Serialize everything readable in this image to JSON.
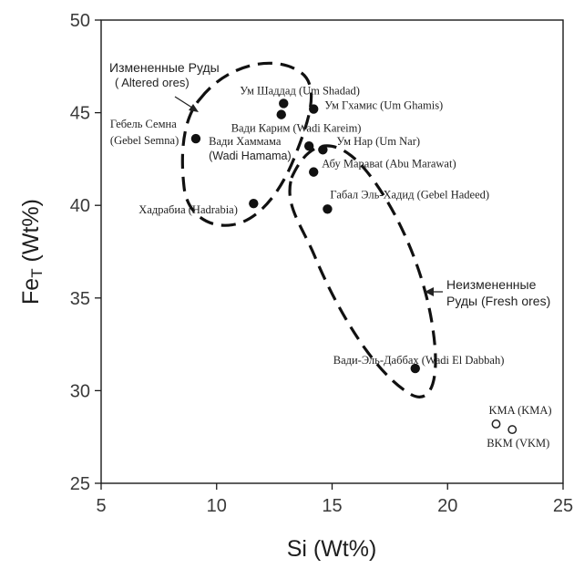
{
  "chart_data": {
    "type": "scatter",
    "xlabel": "Si (Wt%)",
    "ylabel": "FeT (Wt%)",
    "xlim": [
      5,
      25
    ],
    "ylim": [
      25,
      50
    ],
    "xticks": [
      5,
      10,
      15,
      20,
      25
    ],
    "yticks": [
      25,
      30,
      35,
      40,
      45,
      50
    ],
    "x_tick_labels": [
      "5",
      "10",
      "15",
      "20",
      "25"
    ],
    "y_tick_labels": [
      "25",
      "30",
      "35",
      "40",
      "45",
      "50"
    ],
    "grid": false,
    "ylabel_main": "Fe",
    "ylabel_sub": "T",
    "ylabel_rest": " (Wt%)",
    "series": [
      {
        "marker": "filled",
        "points": [
          {
            "label": "Гебель Семна (Gebel Semna)",
            "label_1": "Гебель Семна",
            "label_2": "(Gebel Semna)",
            "x": 9.1,
            "y": 43.6
          },
          {
            "label": "Ум Шаддад (Um Shadad)",
            "x": 12.9,
            "y": 45.5
          },
          {
            "label": "Вади Карим (Wadi Kareim)",
            "x": 12.8,
            "y": 44.9
          },
          {
            "label": "Ум Гхамис (Um Ghamis)",
            "x": 14.2,
            "y": 45.2
          },
          {
            "label": "Вади Хаммама (Wadi Hamama)",
            "label_1": "Вади Хаммама",
            "label_2": "(Wadi Hamama)",
            "x": 14.0,
            "y": 43.2
          },
          {
            "label": "Ум Нар (Um Nar)",
            "x": 14.6,
            "y": 43.0
          },
          {
            "label": "Абу Мараваt (Abu Marawat)",
            "x": 14.2,
            "y": 41.8
          },
          {
            "label": "Габал Эль-Хадид (Gebel Hadeed)",
            "x": 14.8,
            "y": 39.8
          },
          {
            "label": "Хадрабиа (Hadrabia)",
            "x": 11.6,
            "y": 40.1
          },
          {
            "label": "Вади-Эль-Даббах (Wadi El Dabbah)",
            "x": 18.6,
            "y": 31.2
          }
        ]
      },
      {
        "marker": "open",
        "points": [
          {
            "label": "KMA (KMA)",
            "x": 22.1,
            "y": 28.2
          },
          {
            "label": "BKM (VKM)",
            "x": 22.8,
            "y": 27.9
          }
        ]
      }
    ],
    "annotations": [
      {
        "text_1": "Измененные Руды",
        "text_2": "( Altered ores)"
      },
      {
        "text_1": "Неизмененные",
        "text_2": "Руды (Fresh ores)"
      }
    ]
  }
}
